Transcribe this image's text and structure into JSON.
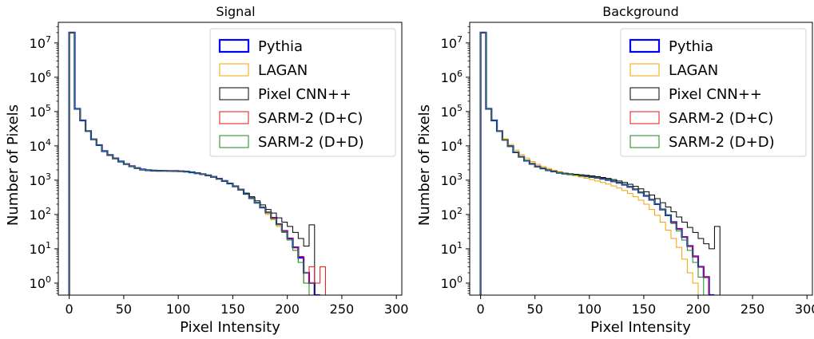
{
  "chart_data": [
    {
      "type": "histogram",
      "title": "Signal",
      "xlabel": "Pixel Intensity",
      "ylabel": "Number of Pixels",
      "xlim": [
        -10,
        305
      ],
      "ylim_log10": [
        -0.35,
        7.6
      ],
      "yscale": "log",
      "xticks": [
        0,
        50,
        100,
        150,
        200,
        250,
        300
      ],
      "yticks": [
        {
          "exp": 0,
          "label": "10",
          "sup": "0"
        },
        {
          "exp": 1,
          "label": "10",
          "sup": "1"
        },
        {
          "exp": 2,
          "label": "10",
          "sup": "2"
        },
        {
          "exp": 3,
          "label": "10",
          "sup": "3"
        },
        {
          "exp": 4,
          "label": "10",
          "sup": "4"
        },
        {
          "exp": 5,
          "label": "10",
          "sup": "5"
        },
        {
          "exp": 6,
          "label": "10",
          "sup": "6"
        },
        {
          "exp": 7,
          "label": "10",
          "sup": "7"
        }
      ],
      "bin_width": 5,
      "legend_position": "upper-right",
      "series": [
        {
          "name": "Pythia",
          "color": "#0000ff",
          "width": 2.2,
          "counts": [
            20000000,
            120000,
            55000,
            27000,
            15500,
            10500,
            7000,
            5400,
            4300,
            3500,
            2950,
            2550,
            2250,
            2050,
            1950,
            1900,
            1880,
            1870,
            1860,
            1850,
            1820,
            1780,
            1700,
            1600,
            1500,
            1380,
            1250,
            1100,
            950,
            800,
            660,
            530,
            400,
            300,
            220,
            160,
            115,
            80,
            52,
            33,
            20,
            11,
            5.5,
            2,
            1,
            0
          ]
        },
        {
          "name": "LAGAN",
          "color": "#f5a300",
          "width": 1,
          "counts": [
            20000000,
            120000,
            55000,
            27000,
            15500,
            10500,
            7000,
            5400,
            4300,
            3500,
            2950,
            2550,
            2250,
            2050,
            1950,
            1900,
            1880,
            1870,
            1860,
            1850,
            1820,
            1780,
            1700,
            1600,
            1500,
            1380,
            1250,
            1100,
            950,
            800,
            660,
            530,
            400,
            300,
            220,
            160,
            100,
            70,
            45,
            30,
            18,
            9,
            4,
            2,
            1,
            0
          ]
        },
        {
          "name": "Pixel CNN++",
          "color": "#000000",
          "width": 1,
          "counts": [
            20000000,
            120000,
            55000,
            27000,
            15500,
            10500,
            7000,
            5400,
            4300,
            3500,
            2950,
            2550,
            2250,
            2050,
            1950,
            1900,
            1880,
            1870,
            1860,
            1850,
            1820,
            1780,
            1700,
            1600,
            1500,
            1380,
            1250,
            1100,
            950,
            800,
            660,
            530,
            420,
            330,
            250,
            190,
            140,
            110,
            80,
            60,
            45,
            30,
            20,
            12,
            50,
            0
          ]
        },
        {
          "name": "SARM-2 (D+C)",
          "color": "#ee1111",
          "width": 1,
          "counts": [
            20000000,
            120000,
            55000,
            27000,
            15500,
            10500,
            7000,
            5400,
            4300,
            3500,
            2950,
            2550,
            2250,
            2050,
            1950,
            1900,
            1880,
            1870,
            1860,
            1850,
            1820,
            1780,
            1700,
            1600,
            1500,
            1380,
            1250,
            1100,
            950,
            800,
            660,
            530,
            400,
            300,
            220,
            160,
            115,
            80,
            52,
            33,
            20,
            11,
            6,
            1,
            3,
            1,
            3
          ]
        },
        {
          "name": "SARM-2 (D+D)",
          "color": "#1a8a1a",
          "width": 1,
          "counts": [
            20000000,
            120000,
            55000,
            27000,
            15500,
            10500,
            7000,
            5400,
            4300,
            3500,
            2950,
            2550,
            2250,
            2050,
            1950,
            1900,
            1880,
            1870,
            1860,
            1850,
            1820,
            1780,
            1700,
            1600,
            1500,
            1380,
            1250,
            1100,
            950,
            800,
            660,
            530,
            400,
            300,
            220,
            160,
            110,
            75,
            50,
            30,
            18,
            9,
            4,
            1,
            0
          ]
        }
      ]
    },
    {
      "type": "histogram",
      "title": "Background",
      "xlabel": "Pixel Intensity",
      "ylabel": "Number of Pixels",
      "xlim": [
        -10,
        305
      ],
      "ylim_log10": [
        -0.35,
        7.6
      ],
      "yscale": "log",
      "xticks": [
        0,
        50,
        100,
        150,
        200,
        250,
        300
      ],
      "yticks": [
        {
          "exp": 0,
          "label": "10",
          "sup": "0"
        },
        {
          "exp": 1,
          "label": "10",
          "sup": "1"
        },
        {
          "exp": 2,
          "label": "10",
          "sup": "2"
        },
        {
          "exp": 3,
          "label": "10",
          "sup": "3"
        },
        {
          "exp": 4,
          "label": "10",
          "sup": "4"
        },
        {
          "exp": 5,
          "label": "10",
          "sup": "5"
        },
        {
          "exp": 6,
          "label": "10",
          "sup": "6"
        },
        {
          "exp": 7,
          "label": "10",
          "sup": "7"
        }
      ],
      "bin_width": 5,
      "legend_position": "upper-right",
      "series": [
        {
          "name": "Pythia",
          "color": "#0000ff",
          "width": 2.2,
          "counts": [
            20000000,
            120000,
            55000,
            27000,
            15000,
            9800,
            6500,
            4800,
            3700,
            3000,
            2500,
            2200,
            1950,
            1800,
            1650,
            1550,
            1480,
            1420,
            1360,
            1300,
            1240,
            1180,
            1100,
            1020,
            930,
            840,
            740,
            640,
            540,
            440,
            350,
            270,
            200,
            140,
            95,
            60,
            38,
            22,
            12,
            6,
            3,
            1.5,
            0
          ]
        },
        {
          "name": "LAGAN",
          "color": "#f5a300",
          "width": 1,
          "counts": [
            20000000,
            120000,
            55000,
            27000,
            16000,
            11000,
            7500,
            5600,
            4400,
            3500,
            2900,
            2500,
            2200,
            1950,
            1750,
            1600,
            1470,
            1350,
            1240,
            1140,
            1040,
            950,
            860,
            770,
            680,
            590,
            500,
            410,
            330,
            260,
            200,
            140,
            95,
            60,
            35,
            20,
            11,
            5,
            2,
            1,
            0
          ]
        },
        {
          "name": "Pixel CNN++",
          "color": "#000000",
          "width": 1,
          "counts": [
            20000000,
            120000,
            55000,
            27000,
            15000,
            9800,
            6500,
            4800,
            3700,
            3000,
            2500,
            2200,
            1950,
            1800,
            1680,
            1600,
            1540,
            1490,
            1440,
            1390,
            1330,
            1270,
            1200,
            1120,
            1040,
            950,
            860,
            760,
            660,
            560,
            460,
            370,
            290,
            220,
            165,
            120,
            85,
            60,
            42,
            30,
            20,
            14,
            10,
            45,
            0
          ]
        },
        {
          "name": "SARM-2 (D+C)",
          "color": "#ee1111",
          "width": 1,
          "counts": [
            20000000,
            120000,
            55000,
            27000,
            15000,
            9800,
            6500,
            4800,
            3700,
            3000,
            2500,
            2200,
            1950,
            1800,
            1650,
            1550,
            1480,
            1420,
            1360,
            1300,
            1240,
            1180,
            1100,
            1020,
            930,
            840,
            740,
            640,
            540,
            440,
            350,
            270,
            200,
            140,
            95,
            60,
            38,
            22,
            12,
            6,
            3,
            1.5,
            0
          ]
        },
        {
          "name": "SARM-2 (D+D)",
          "color": "#1a8a1a",
          "width": 1,
          "counts": [
            20000000,
            120000,
            55000,
            27000,
            15000,
            9800,
            6500,
            4800,
            3700,
            3000,
            2500,
            2200,
            1950,
            1800,
            1650,
            1550,
            1480,
            1420,
            1360,
            1300,
            1240,
            1180,
            1100,
            1020,
            930,
            840,
            740,
            640,
            540,
            440,
            350,
            270,
            200,
            140,
            95,
            55,
            33,
            18,
            9,
            4,
            1.5,
            0
          ]
        }
      ]
    }
  ]
}
